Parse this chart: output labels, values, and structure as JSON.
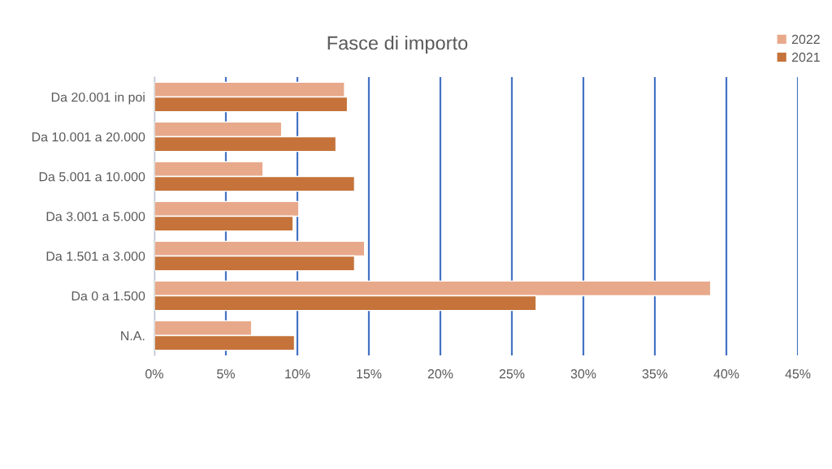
{
  "chart_data": {
    "type": "bar",
    "orientation": "horizontal",
    "title": "Fasce di importo",
    "categories": [
      "Da 20.001 in poi",
      "Da 10.001 a 20.000",
      "Da 5.001 a 10.000",
      "Da 3.001 a 5.000",
      "Da 1.501 a 3.000",
      "Da 0 a 1.500",
      "N.A."
    ],
    "series": [
      {
        "name": "2022",
        "color": "#e8a98a",
        "values": [
          13.3,
          8.9,
          7.6,
          10.1,
          14.7,
          38.9,
          6.8
        ]
      },
      {
        "name": "2021",
        "color": "#c5733a",
        "values": [
          13.5,
          12.7,
          14.0,
          9.7,
          14.0,
          26.7,
          9.8
        ]
      }
    ],
    "xlim": [
      0,
      45
    ],
    "xticks": [
      {
        "value": 0,
        "label": "0%"
      },
      {
        "value": 5,
        "label": "5%"
      },
      {
        "value": 10,
        "label": "10%"
      },
      {
        "value": 15,
        "label": "15%"
      },
      {
        "value": 20,
        "label": "20%"
      },
      {
        "value": 25,
        "label": "25%"
      },
      {
        "value": 30,
        "label": "30%"
      },
      {
        "value": 35,
        "label": "35%"
      },
      {
        "value": 40,
        "label": "40%"
      },
      {
        "value": 45,
        "label": "45%"
      }
    ],
    "grid": "x",
    "legend": "top right"
  }
}
